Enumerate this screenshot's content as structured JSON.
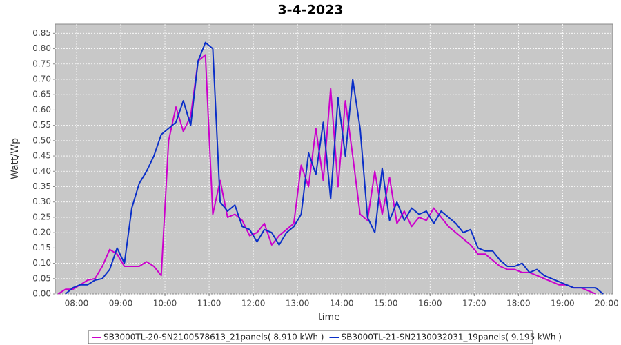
{
  "chart_data": {
    "type": "line",
    "title": "3-4-2023",
    "xlabel": "time",
    "ylabel": "Watt/Wp",
    "x": [
      "07:35",
      "07:45",
      "07:55",
      "08:05",
      "08:15",
      "08:25",
      "08:35",
      "08:45",
      "08:55",
      "09:05",
      "09:15",
      "09:25",
      "09:35",
      "09:45",
      "09:55",
      "10:05",
      "10:15",
      "10:25",
      "10:35",
      "10:45",
      "10:55",
      "11:05",
      "11:15",
      "11:25",
      "11:35",
      "11:45",
      "11:55",
      "12:05",
      "12:15",
      "12:25",
      "12:35",
      "12:45",
      "12:55",
      "13:05",
      "13:15",
      "13:25",
      "13:35",
      "13:45",
      "13:55",
      "14:05",
      "14:15",
      "14:25",
      "14:35",
      "14:45",
      "14:55",
      "15:05",
      "15:15",
      "15:25",
      "15:35",
      "15:45",
      "15:55",
      "16:05",
      "16:15",
      "16:25",
      "16:35",
      "16:45",
      "16:55",
      "17:05",
      "17:15",
      "17:25",
      "17:35",
      "17:45",
      "17:55",
      "18:05",
      "18:15",
      "18:25",
      "18:35",
      "18:45",
      "18:55",
      "19:05",
      "19:15",
      "19:25",
      "19:35",
      "19:45",
      "19:55"
    ],
    "series": [
      {
        "name": "SB3000TL-20-SN2100578613_21panels( 8.910 kWh )",
        "color": "#cc00cc",
        "values": [
          0.0,
          0.015,
          0.015,
          0.03,
          0.045,
          0.05,
          0.09,
          0.145,
          0.13,
          0.09,
          0.09,
          0.09,
          0.105,
          0.09,
          0.06,
          0.5,
          0.61,
          0.53,
          0.58,
          0.76,
          0.78,
          0.26,
          0.37,
          0.25,
          0.26,
          0.24,
          0.19,
          0.2,
          0.23,
          0.16,
          0.19,
          0.21,
          0.23,
          0.42,
          0.35,
          0.54,
          0.37,
          0.67,
          0.35,
          0.63,
          0.45,
          0.26,
          0.24,
          0.4,
          0.26,
          0.38,
          0.23,
          0.27,
          0.22,
          0.25,
          0.24,
          0.28,
          0.25,
          0.22,
          0.2,
          0.18,
          0.16,
          0.13,
          0.13,
          0.11,
          0.09,
          0.08,
          0.08,
          0.07,
          0.07,
          0.06,
          0.05,
          0.04,
          0.03,
          0.03,
          0.02,
          0.02,
          0.01,
          0.0,
          null
        ]
      },
      {
        "name": "SB3000TL-21-SN2130032031_19panels( 9.195 kWh )",
        "color": "#0a2fc8",
        "values": [
          null,
          0.0,
          0.02,
          0.03,
          0.03,
          0.045,
          0.05,
          0.08,
          0.15,
          0.1,
          0.28,
          0.36,
          0.4,
          0.45,
          0.52,
          0.54,
          0.56,
          0.63,
          0.55,
          0.76,
          0.82,
          0.8,
          0.3,
          0.27,
          0.29,
          0.22,
          0.21,
          0.17,
          0.21,
          0.2,
          0.16,
          0.2,
          0.22,
          0.26,
          0.46,
          0.39,
          0.56,
          0.31,
          0.64,
          0.45,
          0.7,
          0.54,
          0.25,
          0.2,
          0.41,
          0.24,
          0.3,
          0.24,
          0.28,
          0.26,
          0.27,
          0.23,
          0.27,
          0.25,
          0.23,
          0.2,
          0.21,
          0.15,
          0.14,
          0.14,
          0.11,
          0.09,
          0.09,
          0.1,
          0.07,
          0.08,
          0.06,
          0.05,
          0.04,
          0.03,
          0.02,
          0.02,
          0.02,
          0.02,
          0.0
        ]
      }
    ],
    "xlim": [
      "07:31",
      "20:08"
    ],
    "xticks": [
      "08:00",
      "09:00",
      "10:00",
      "11:00",
      "12:00",
      "13:00",
      "14:00",
      "15:00",
      "16:00",
      "17:00",
      "18:00",
      "19:00",
      "20:00"
    ],
    "ylim": [
      0,
      0.88
    ],
    "yticks": [
      {
        "value": 0,
        "label": "0.00"
      },
      {
        "value": 0.05,
        "label": "0.05"
      },
      {
        "value": 0.1,
        "label": "0.10"
      },
      {
        "value": 0.15,
        "label": "0.15"
      },
      {
        "value": 0.2,
        "label": "0.20"
      },
      {
        "value": 0.25,
        "label": "0.25"
      },
      {
        "value": 0.3,
        "label": "0.30"
      },
      {
        "value": 0.35,
        "label": "0.35"
      },
      {
        "value": 0.4,
        "label": "0.40"
      },
      {
        "value": 0.45,
        "label": "0.45"
      },
      {
        "value": 0.5,
        "label": "0.50"
      },
      {
        "value": 0.55,
        "label": "0.55"
      },
      {
        "value": 0.6,
        "label": "0.60"
      },
      {
        "value": 0.65,
        "label": "0.65"
      },
      {
        "value": 0.7,
        "label": "0.70"
      },
      {
        "value": 0.75,
        "label": "0.75"
      },
      {
        "value": 0.8,
        "label": "0.80"
      },
      {
        "value": 0.85,
        "label": "0.85"
      }
    ],
    "grid": true,
    "legend": "bottom"
  }
}
